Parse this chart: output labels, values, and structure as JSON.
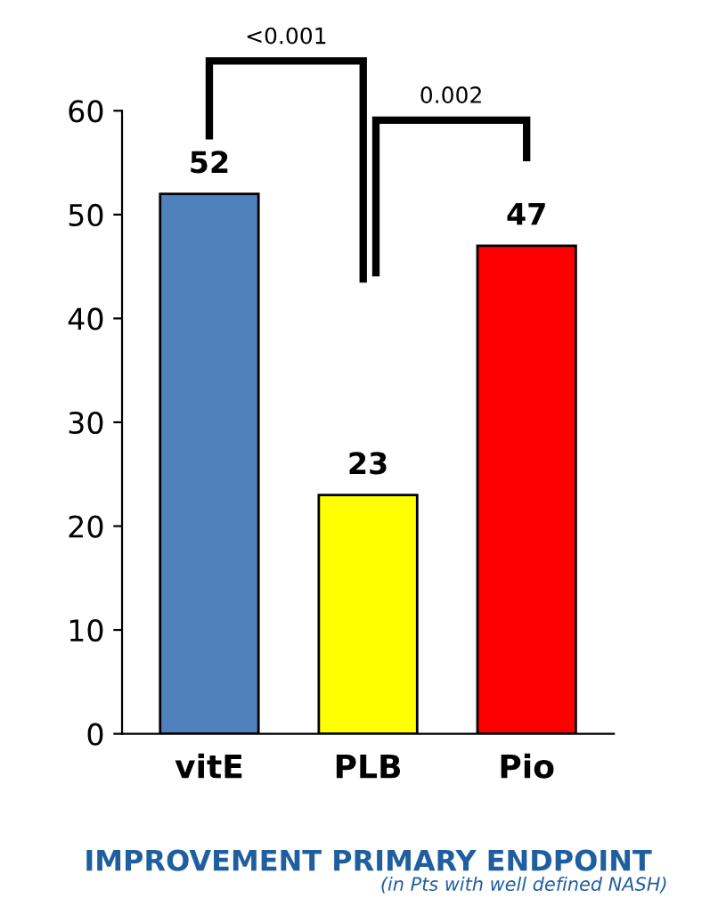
{
  "chart_data": {
    "type": "bar",
    "categories": [
      "vitE",
      "PLB",
      "Pio"
    ],
    "values": [
      52,
      23,
      47
    ],
    "colors": [
      "#4f81bd",
      "#ffff00",
      "#ff0000"
    ],
    "ylim": [
      0,
      60
    ],
    "yticks": [
      0,
      10,
      20,
      30,
      40,
      50,
      60
    ],
    "grid": false,
    "data_labels": true,
    "xlabel": "IMPROVEMENT PRIMARY ENDPOINT",
    "annotations": [
      "(in Pts with well defined NASH)",
      "<0.001",
      "0.002"
    ]
  }
}
